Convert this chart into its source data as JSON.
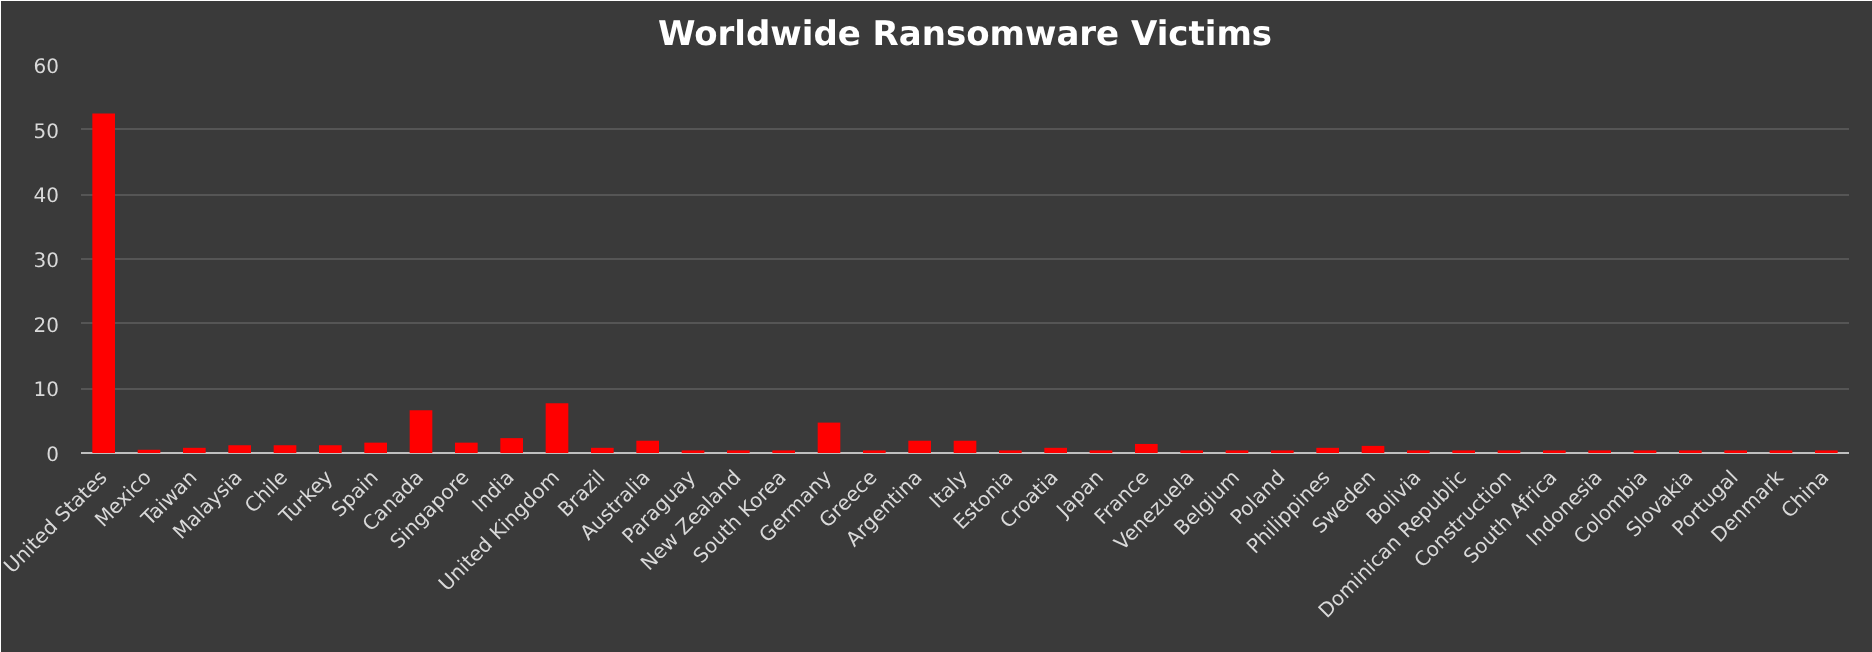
{
  "chart_data": {
    "type": "bar",
    "title": "Worldwide Ransomware Victims",
    "categories": [
      "United States",
      "Mexico",
      "Taiwan",
      "Malaysia",
      "Chile",
      "Turkey",
      "Spain",
      "Canada",
      "Singapore",
      "India",
      "United Kingdom",
      "Brazil",
      "Australia",
      "Paraguay",
      "New Zealand",
      "South Korea",
      "Germany",
      "Greece",
      "Argentina",
      "Italy",
      "Estonia",
      "Croatia",
      "Japan",
      "France",
      "Venezuela",
      "Belgium",
      "Poland",
      "Philippines",
      "Sweden",
      "Bolivia",
      "Dominican Republic",
      "Construction",
      "South Africa",
      "Indonesia",
      "Colombia",
      "Slovakia",
      "Portugal",
      "Denmark",
      "China"
    ],
    "values": [
      52.5,
      0.5,
      0.8,
      1.2,
      1.2,
      1.2,
      1.6,
      6.6,
      1.6,
      2.3,
      7.7,
      0.8,
      1.9,
      0.4,
      0.4,
      0.4,
      4.7,
      0.4,
      1.9,
      1.9,
      0.4,
      0.8,
      0.4,
      1.4,
      0.4,
      0.4,
      0.4,
      0.8,
      1.1,
      0.4,
      0.4,
      0.4,
      0.4,
      0.4,
      0.4,
      0.4,
      0.4,
      0.4,
      0.4
    ],
    "color": "#ff0000",
    "ylim": [
      0,
      60
    ],
    "yticks": [
      0,
      10,
      20,
      30,
      40,
      50,
      60
    ],
    "grid": "y"
  }
}
